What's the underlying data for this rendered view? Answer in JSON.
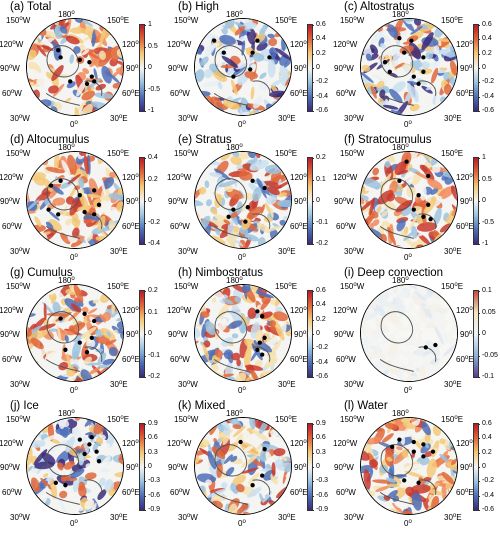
{
  "colorbar": {
    "colors": [
      "#3a2a7a",
      "#4e6fb8",
      "#9cc3df",
      "#f4f4f2",
      "#f3c978",
      "#e0663a",
      "#b8192a"
    ]
  },
  "labels": {
    "lon_150w": "150",
    "lon_180": "180",
    "lon_150e": "150",
    "lon_120w": "120",
    "lon_120e": "120",
    "lon_90w": "90",
    "lon_90e": "90",
    "lon_60w": "60",
    "lon_60e": "60",
    "lon_30w": "30",
    "lon_0": "0",
    "lon_30e": "30",
    "deg": "o",
    "w": "W",
    "e": "E"
  },
  "panels": [
    {
      "title": "(a) Total",
      "ticks": [
        "1",
        "0.5",
        "0",
        "-0.5",
        "-1"
      ],
      "palette": "warm",
      "points": [
        [
          -0.35,
          -0.35
        ],
        [
          -0.3,
          -0.2
        ],
        [
          0.1,
          -0.15
        ],
        [
          0.3,
          -0.1
        ],
        [
          0.35,
          0.2
        ],
        [
          0.25,
          0.35
        ],
        [
          0.4,
          0.3
        ],
        [
          -0.1,
          0.3
        ]
      ]
    },
    {
      "title": "(b) High",
      "ticks": [
        "0.6",
        "0.4",
        "0.2",
        "0",
        "-0.2",
        "-0.4",
        "-0.6"
      ],
      "palette": "cool",
      "points": [
        [
          -0.6,
          -0.55
        ],
        [
          -0.4,
          -0.3
        ],
        [
          0.3,
          -0.55
        ],
        [
          0.55,
          -0.2
        ],
        [
          0.2,
          -0.3
        ],
        [
          0.15,
          0.05
        ],
        [
          -0.2,
          0.2
        ]
      ]
    },
    {
      "title": "(c) Altostratus",
      "ticks": [
        "0.6",
        "0.4",
        "0.2",
        "0",
        "-0.2",
        "-0.4",
        "-0.6"
      ],
      "palette": "cool",
      "points": [
        [
          -0.2,
          -0.6
        ],
        [
          0.05,
          -0.55
        ],
        [
          -0.1,
          -0.3
        ],
        [
          0.3,
          -0.2
        ],
        [
          -0.5,
          -0.1
        ],
        [
          -0.4,
          0.1
        ],
        [
          0.1,
          0.2
        ],
        [
          0.3,
          0.1
        ],
        [
          0.2,
          0.35
        ]
      ]
    },
    {
      "title": "(d) Altocumulus",
      "ticks": [
        "0.4",
        "0.2",
        "0",
        "-0.2",
        "-0.4"
      ],
      "palette": "warm",
      "points": [
        [
          -0.5,
          -0.3
        ],
        [
          -0.3,
          -0.4
        ],
        [
          0.1,
          -0.1
        ],
        [
          0.4,
          -0.2
        ],
        [
          0.5,
          0.1
        ],
        [
          0.4,
          0.3
        ],
        [
          -0.35,
          0.3
        ],
        [
          -0.55,
          0.2
        ],
        [
          0.2,
          0.25
        ]
      ]
    },
    {
      "title": "(e) Stratus",
      "ticks": [
        "0.2",
        "0.1",
        "0",
        "-0.1",
        "-0.2"
      ],
      "palette": "mixed",
      "points": [
        [
          0.2,
          -0.4
        ],
        [
          0.45,
          -0.25
        ],
        [
          -0.2,
          0.2
        ],
        [
          -0.3,
          0.35
        ],
        [
          0.1,
          0.15
        ],
        [
          0.05,
          0.45
        ]
      ]
    },
    {
      "title": "(f) Stratocumulus",
      "ticks": [
        "1",
        "0.5",
        "0",
        "-0.5",
        "-1"
      ],
      "palette": "warm",
      "points": [
        [
          -0.05,
          -0.8
        ],
        [
          -0.2,
          -0.4
        ],
        [
          0.4,
          -0.5
        ],
        [
          0.2,
          -0.1
        ],
        [
          0.4,
          0.1
        ],
        [
          0.3,
          0.35
        ],
        [
          0.1,
          0.2
        ],
        [
          0.45,
          0.4
        ]
      ]
    },
    {
      "title": "(g) Cumulus",
      "ticks": [
        "0.2",
        "0.1",
        "0",
        "-0.1",
        "-0.2"
      ],
      "palette": "warm",
      "points": [
        [
          -0.3,
          -0.3
        ],
        [
          0.2,
          -0.4
        ],
        [
          0.4,
          -0.25
        ],
        [
          0.35,
          0.1
        ],
        [
          0.25,
          0.4
        ],
        [
          -0.2,
          0.35
        ],
        [
          0.1,
          0.2
        ]
      ]
    },
    {
      "title": "(h) Nimbostratus",
      "ticks": [
        "0.6",
        "0.4",
        "0.2",
        "0",
        "-0.2",
        "-0.4",
        "-0.6"
      ],
      "palette": "mixed",
      "points": [
        [
          0.3,
          -0.45
        ],
        [
          0.4,
          -0.35
        ],
        [
          0.45,
          0.1
        ],
        [
          0.35,
          0.2
        ],
        [
          0.3,
          0.35
        ],
        [
          0.4,
          0.45
        ]
      ]
    },
    {
      "title": "(i) Deep convection",
      "ticks": [
        "0.1",
        "0.05",
        "0",
        "-0.05",
        "-0.1"
      ],
      "palette": "pale",
      "points": [
        [
          0.55,
          0.25
        ],
        [
          0.35,
          0.3
        ]
      ]
    },
    {
      "title": "(j) Ice",
      "ticks": [
        "0.9",
        "0.6",
        "0.3",
        "0",
        "-0.3",
        "-0.6",
        "-0.9"
      ],
      "palette": "cool",
      "points": [
        [
          0.1,
          -0.55
        ],
        [
          0.3,
          -0.45
        ],
        [
          0.45,
          -0.3
        ],
        [
          0.2,
          -0.25
        ],
        [
          0.5,
          -0.1
        ],
        [
          -0.4,
          0.35
        ],
        [
          -0.2,
          0.4
        ],
        [
          0.35,
          -0.6
        ]
      ]
    },
    {
      "title": "(k) Mixed",
      "ticks": [
        "0.9",
        "0.6",
        "0.3",
        "0",
        "-0.3",
        "-0.6",
        "-0.9"
      ],
      "palette": "mixed",
      "points": [
        [
          -0.05,
          -0.5
        ],
        [
          0.45,
          -0.35
        ],
        [
          0.4,
          0.2
        ],
        [
          0.2,
          0.4
        ]
      ]
    },
    {
      "title": "(l) Water",
      "ticks": [
        "0.6",
        "0.4",
        "0.2",
        "0",
        "-0.2",
        "-0.4",
        "-0.6"
      ],
      "palette": "warm",
      "points": [
        [
          -0.2,
          -0.55
        ],
        [
          0.1,
          -0.5
        ],
        [
          0.3,
          -0.45
        ],
        [
          0.5,
          -0.3
        ],
        [
          -0.35,
          -0.4
        ],
        [
          0.1,
          -0.3
        ],
        [
          0.3,
          -0.2
        ],
        [
          -0.1,
          0.3
        ],
        [
          0.2,
          0.35
        ]
      ]
    }
  ]
}
